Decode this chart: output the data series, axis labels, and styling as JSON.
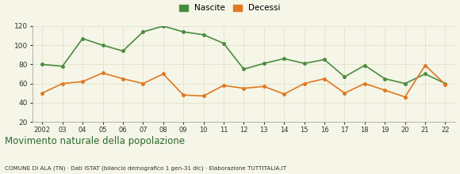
{
  "years": [
    2002,
    2003,
    2004,
    2005,
    2006,
    2007,
    2008,
    2009,
    2010,
    2011,
    2012,
    2013,
    2014,
    2015,
    2016,
    2017,
    2018,
    2019,
    2020,
    2021,
    2022
  ],
  "nascite": [
    80,
    78,
    107,
    100,
    94,
    114,
    120,
    114,
    111,
    102,
    75,
    81,
    86,
    81,
    85,
    67,
    79,
    65,
    60,
    70,
    60
  ],
  "decessi": [
    50,
    60,
    62,
    71,
    65,
    60,
    70,
    48,
    47,
    58,
    55,
    57,
    49,
    60,
    65,
    50,
    60,
    53,
    46,
    79,
    59
  ],
  "nascite_color": "#4a8c3f",
  "decessi_color": "#e07820",
  "ylim": [
    20,
    120
  ],
  "yticks": [
    20,
    40,
    60,
    80,
    100,
    120
  ],
  "title": "Movimento naturale della popolazione",
  "subtitle": "COMUNE DI ALA (TN) · Dati ISTAT (bilancio demografico 1 gen-31 dic) · Elaborazione TUTTITALIA.IT",
  "legend_nascite": "Nascite",
  "legend_decessi": "Decessi",
  "bg_color": "#f5f5e8",
  "grid_color": "#ccccaa",
  "title_color": "#2d6a2d",
  "subtitle_color": "#333333",
  "x_labels": [
    "2002",
    "03",
    "04",
    "05",
    "06",
    "07",
    "08",
    "09",
    "10",
    "11",
    "12",
    "13",
    "14",
    "15",
    "16",
    "17",
    "18",
    "19",
    "20",
    "21",
    "22"
  ]
}
